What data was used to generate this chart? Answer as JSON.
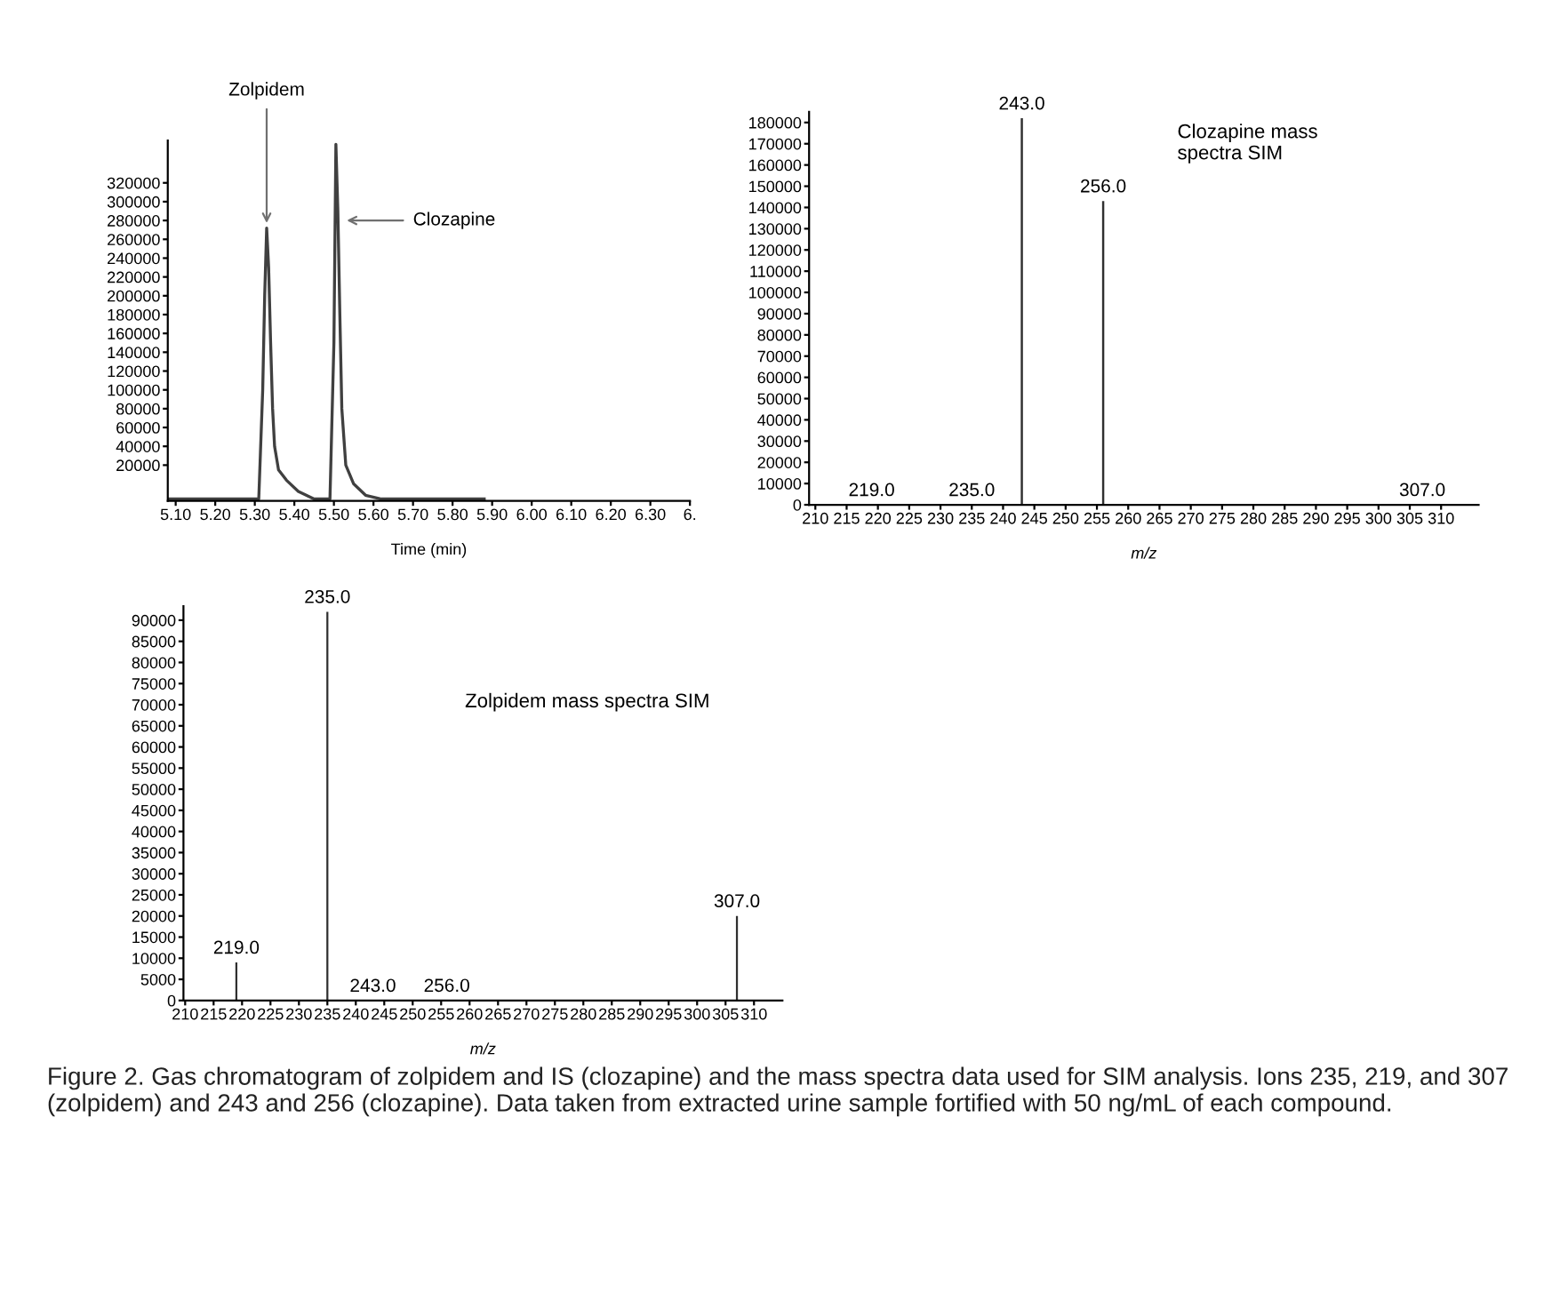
{
  "chart_data": [
    {
      "type": "line",
      "xlabel": "Time (min)",
      "color": "#404040",
      "x": [
        5.08,
        5.31,
        5.32,
        5.325,
        5.33,
        5.335,
        5.34,
        5.345,
        5.35,
        5.36,
        5.38,
        5.41,
        5.45,
        5.49,
        5.5,
        5.505,
        5.51,
        5.515,
        5.52,
        5.53,
        5.55,
        5.58,
        5.62,
        5.88
      ],
      "values": [
        -16000,
        -16000,
        100000,
        200000,
        272000,
        230000,
        150000,
        80000,
        40000,
        15000,
        4000,
        -8000,
        -16000,
        -16000,
        150000,
        361000,
        290000,
        180000,
        80000,
        20000,
        0,
        -12000,
        -16000,
        -16000
      ],
      "xlim": [
        5.08,
        6.4
      ],
      "xticks": [
        {
          "value": 5.1,
          "label": "5.10"
        },
        {
          "value": 5.2,
          "label": "5.20"
        },
        {
          "value": 5.3,
          "label": "5.30"
        },
        {
          "value": 5.4,
          "label": "5.40"
        },
        {
          "value": 5.5,
          "label": "5.50"
        },
        {
          "value": 5.6,
          "label": "5.60"
        },
        {
          "value": 5.7,
          "label": "5.70"
        },
        {
          "value": 5.8,
          "label": "5.80"
        },
        {
          "value": 5.9,
          "label": "5.90"
        },
        {
          "value": 6.0,
          "label": "6.00"
        },
        {
          "value": 6.1,
          "label": "6.10"
        },
        {
          "value": 6.2,
          "label": "6.20"
        },
        {
          "value": 6.3,
          "label": "6.30"
        },
        {
          "value": 6.4,
          "label": "6."
        }
      ],
      "ylim": [
        -18000,
        365000
      ],
      "yticks": [
        20000,
        40000,
        60000,
        80000,
        100000,
        120000,
        140000,
        160000,
        180000,
        200000,
        220000,
        240000,
        260000,
        280000,
        300000,
        320000
      ],
      "annotations": [
        {
          "text": "Zolpidem",
          "x": 5.33,
          "y": 272000
        },
        {
          "text": "Clozapine",
          "x": 5.52,
          "y": 280000
        }
      ],
      "grid": false
    },
    {
      "type": "bar",
      "xlabel": "m/z",
      "color": "#303030",
      "x": [
        219,
        235,
        243,
        256,
        307
      ],
      "values": [
        0,
        0,
        182000,
        143000,
        0
      ],
      "xlim": [
        209,
        316
      ],
      "xticks": [
        210,
        215,
        220,
        225,
        230,
        235,
        240,
        245,
        250,
        255,
        260,
        265,
        270,
        275,
        280,
        285,
        290,
        295,
        300,
        305,
        310
      ],
      "ylim": [
        0,
        185000
      ],
      "yticks": [
        0,
        10000,
        20000,
        30000,
        40000,
        50000,
        60000,
        70000,
        80000,
        90000,
        100000,
        110000,
        120000,
        130000,
        140000,
        150000,
        160000,
        170000,
        180000
      ],
      "annotations": [
        "Clozapine mass\nspectra SIM",
        {
          "text": "219.0",
          "x": 219,
          "y": 0
        },
        {
          "text": "235.0",
          "x": 235,
          "y": 0
        },
        {
          "text": "243.0",
          "x": 243,
          "y": 182000
        },
        {
          "text": "256.0",
          "x": 256,
          "y": 143000
        },
        {
          "text": "307.0",
          "x": 307,
          "y": 0
        }
      ],
      "grid": false
    },
    {
      "type": "bar",
      "xlabel": "m/z",
      "color": "#303030",
      "x": [
        219,
        235,
        243,
        256,
        307
      ],
      "values": [
        9000,
        92000,
        0,
        0,
        20000
      ],
      "xlim": [
        209.7,
        315
      ],
      "xticks": [
        210,
        215,
        220,
        225,
        230,
        235,
        240,
        245,
        250,
        255,
        260,
        265,
        270,
        275,
        280,
        285,
        290,
        295,
        300,
        305,
        310
      ],
      "ylim": [
        0,
        93300
      ],
      "yticks": [
        0,
        5000,
        10000,
        15000,
        20000,
        25000,
        30000,
        35000,
        40000,
        45000,
        50000,
        55000,
        60000,
        65000,
        70000,
        75000,
        80000,
        85000,
        90000
      ],
      "annotations": [
        "Zolpidem mass spectra SIM",
        "Figure 2. Gas chromatogram of zolpidem and IS (clozapine) and the mass spectra data used for SIM analysis. Ions 235, 219, and 307 (zolpidem) and 243 and 256 (clozapine). Data taken from extracted urine sample fortified with 50 ng/mL of each compound.",
        {
          "text": "219.0",
          "x": 219,
          "y": 9000
        },
        {
          "text": "235.0",
          "x": 235,
          "y": 92000
        },
        {
          "text": "243.0",
          "x": 243,
          "y": 0
        },
        {
          "text": "256.0",
          "x": 256,
          "y": 0
        },
        {
          "text": "307.0",
          "x": 307,
          "y": 20000
        }
      ],
      "grid": false
    }
  ]
}
